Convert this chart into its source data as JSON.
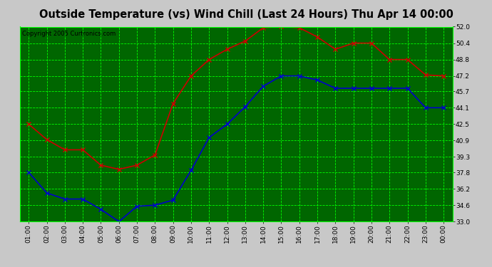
{
  "title": "Outside Temperature (vs) Wind Chill (Last 24 Hours) Thu Apr 14 00:00",
  "copyright": "Copyright 2005 Curtronics.com",
  "x_labels": [
    "01:00",
    "02:00",
    "03:00",
    "04:00",
    "05:00",
    "06:00",
    "07:00",
    "08:00",
    "09:00",
    "10:00",
    "11:00",
    "12:00",
    "13:00",
    "14:00",
    "15:00",
    "16:00",
    "17:00",
    "18:00",
    "19:00",
    "20:00",
    "21:00",
    "22:00",
    "23:00",
    "00:00"
  ],
  "red_data": [
    42.5,
    41.0,
    40.0,
    40.0,
    38.5,
    38.1,
    38.5,
    39.5,
    44.5,
    47.2,
    48.8,
    49.8,
    50.6,
    51.9,
    52.0,
    51.9,
    51.0,
    49.8,
    50.4,
    50.4,
    48.8,
    48.8,
    47.3,
    47.2
  ],
  "blue_data": [
    37.8,
    35.8,
    35.2,
    35.2,
    34.2,
    33.0,
    34.5,
    34.6,
    35.1,
    38.0,
    41.2,
    42.5,
    44.2,
    46.2,
    47.2,
    47.2,
    46.8,
    46.0,
    46.0,
    46.0,
    46.0,
    46.0,
    44.1,
    44.1
  ],
  "red_color": "#cc0000",
  "blue_color": "#0000cc",
  "bg_color": "#c8c8c8",
  "plot_bg_color": "#006600",
  "grid_color": "#00ff00",
  "tick_color": "#000000",
  "title_color": "#000000",
  "copyright_color": "#000000",
  "ymin": 33.0,
  "ymax": 52.0,
  "yticks": [
    33.0,
    34.6,
    36.2,
    37.8,
    39.3,
    40.9,
    42.5,
    44.1,
    45.7,
    47.2,
    48.8,
    50.4,
    52.0
  ],
  "marker": "x",
  "marker_size": 4,
  "linewidth": 1.2
}
